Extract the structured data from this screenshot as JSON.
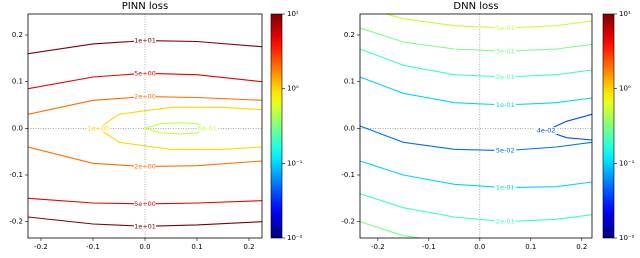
{
  "chart_data": [
    {
      "type": "contour",
      "title": "PINN loss",
      "xlim": [
        -0.225,
        0.225
      ],
      "ylim": [
        -0.235,
        0.245
      ],
      "xticks": [
        -0.2,
        -0.1,
        {
          "value": 0,
          "label": "0.0"
        },
        0.1,
        0.2
      ],
      "yticks": [
        -0.2,
        -0.1,
        {
          "value": 0,
          "label": "0.0"
        },
        0.1,
        0.2
      ],
      "crosshair": true,
      "colorbar": {
        "colormap": "jet",
        "log": true,
        "lim": [
          0.01,
          10
        ],
        "ticks": [
          {
            "value": 10,
            "label": "10¹"
          },
          {
            "value": 1,
            "label": "10⁰"
          },
          {
            "value": 0.1,
            "label": "10⁻¹"
          },
          {
            "value": 0.01,
            "label": "10⁻²"
          }
        ]
      },
      "contours": [
        {
          "level": 10,
          "label": "1e+01",
          "x": [
            -0.225,
            -0.1,
            0,
            0.1,
            0.225
          ],
          "y": [
            0.16,
            0.181,
            0.188,
            0.186,
            0.175
          ]
        },
        {
          "level": 5,
          "label": "5e+00",
          "x": [
            -0.225,
            -0.1,
            0,
            0.1,
            0.225
          ],
          "y": [
            0.085,
            0.11,
            0.118,
            0.115,
            0.1
          ]
        },
        {
          "level": 2,
          "label": "2e+00",
          "x": [
            -0.225,
            -0.1,
            0,
            0.1,
            0.225
          ],
          "y": [
            0.03,
            0.06,
            0.068,
            0.066,
            0.06
          ]
        },
        {
          "level": 1,
          "label": "1e+00",
          "x": [
            0.225,
            0.15,
            0.05,
            -0.05,
            -0.09,
            -0.05,
            0.05,
            0.15,
            0.225
          ],
          "y": [
            0.04,
            0.045,
            0.045,
            0.03,
            0,
            -0.03,
            -0.045,
            -0.045,
            -0.04
          ]
        },
        {
          "level": 0.5,
          "label": "5e-01",
          "x": [
            0,
            0.03,
            0.07,
            0.1,
            0.12,
            0.1,
            0.07,
            0.03,
            0
          ],
          "y": [
            0,
            0.01,
            0.012,
            0.01,
            0,
            -0.01,
            -0.012,
            -0.01,
            0
          ]
        },
        {
          "level": 2,
          "label": "2e+00",
          "x": [
            -0.225,
            -0.1,
            0,
            0.1,
            0.225
          ],
          "y": [
            -0.04,
            -0.075,
            -0.082,
            -0.08,
            -0.07
          ]
        },
        {
          "level": 5,
          "label": "5e+00",
          "x": [
            -0.225,
            -0.1,
            0,
            0.1,
            0.225
          ],
          "y": [
            -0.15,
            -0.16,
            -0.162,
            -0.16,
            -0.155
          ]
        },
        {
          "level": 10,
          "label": "1e+01",
          "x": [
            -0.225,
            -0.1,
            0,
            0.1,
            0.225
          ],
          "y": [
            -0.19,
            -0.205,
            -0.21,
            -0.207,
            -0.2
          ]
        }
      ]
    },
    {
      "type": "contour",
      "title": "DNN loss",
      "xlim": [
        -0.235,
        0.22
      ],
      "ylim": [
        -0.235,
        0.245
      ],
      "xticks": [
        -0.2,
        -0.1,
        {
          "value": 0,
          "label": "0.0"
        },
        0.1,
        0.2
      ],
      "yticks": [
        -0.2,
        -0.1,
        {
          "value": 0,
          "label": "0.0"
        },
        0.1,
        0.2
      ],
      "crosshair": true,
      "colorbar": {
        "colormap": "jet",
        "log": true,
        "lim": [
          0.01,
          10
        ],
        "ticks": [
          {
            "value": 10,
            "label": "10¹"
          },
          {
            "value": 1,
            "label": "10⁰"
          },
          {
            "value": 0.1,
            "label": "10⁻¹"
          },
          {
            "value": 0.01,
            "label": "10⁻²"
          }
        ]
      },
      "contours": [
        {
          "level": 0.5,
          "label": "5e-01",
          "x": [
            -0.235,
            -0.15,
            -0.05,
            0.05,
            0.15,
            0.22
          ],
          "y": [
            0.26,
            0.235,
            0.22,
            0.215,
            0.22,
            0.23
          ]
        },
        {
          "level": 0.3,
          "label": "3e-01",
          "x": [
            -0.235,
            -0.15,
            -0.05,
            0.05,
            0.15,
            0.22
          ],
          "y": [
            0.215,
            0.185,
            0.17,
            0.165,
            0.17,
            0.18
          ]
        },
        {
          "level": 0.2,
          "label": "2e-01",
          "x": [
            -0.235,
            -0.15,
            -0.05,
            0.05,
            0.15,
            0.22
          ],
          "y": [
            0.17,
            0.135,
            0.115,
            0.11,
            0.115,
            0.125
          ]
        },
        {
          "level": 0.1,
          "label": "1e-01",
          "x": [
            -0.235,
            -0.15,
            -0.05,
            0.05,
            0.15,
            0.22
          ],
          "y": [
            0.11,
            0.075,
            0.055,
            0.05,
            0.055,
            0.065
          ]
        },
        {
          "level": 0.05,
          "label": "5e-02",
          "x": [
            -0.235,
            -0.15,
            -0.05,
            0.05,
            0.15,
            0.22
          ],
          "y": [
            0.005,
            -0.03,
            -0.045,
            -0.048,
            -0.04,
            -0.03
          ]
        },
        {
          "level": 0.04,
          "label": "4e-02",
          "x": [
            0.22,
            0.17,
            0.13,
            0.17,
            0.22
          ],
          "y": [
            0.03,
            0.015,
            -0.005,
            -0.02,
            -0.025
          ]
        },
        {
          "level": 0.1,
          "label": "1e-01",
          "x": [
            -0.235,
            -0.15,
            -0.05,
            0.05,
            0.15,
            0.22
          ],
          "y": [
            -0.07,
            -0.1,
            -0.12,
            -0.127,
            -0.125,
            -0.115
          ]
        },
        {
          "level": 0.2,
          "label": "2e-01",
          "x": [
            -0.235,
            -0.15,
            -0.05,
            0.05,
            0.15,
            0.22
          ],
          "y": [
            -0.14,
            -0.17,
            -0.19,
            -0.2,
            -0.195,
            -0.185
          ]
        },
        {
          "level": 0.3,
          "label": "3e-01",
          "x": [
            -0.235,
            -0.15,
            -0.05,
            0.05,
            0.15,
            0.22
          ],
          "y": [
            -0.2,
            -0.23,
            -0.245,
            -0.25,
            -0.248,
            -0.24
          ]
        }
      ]
    }
  ]
}
